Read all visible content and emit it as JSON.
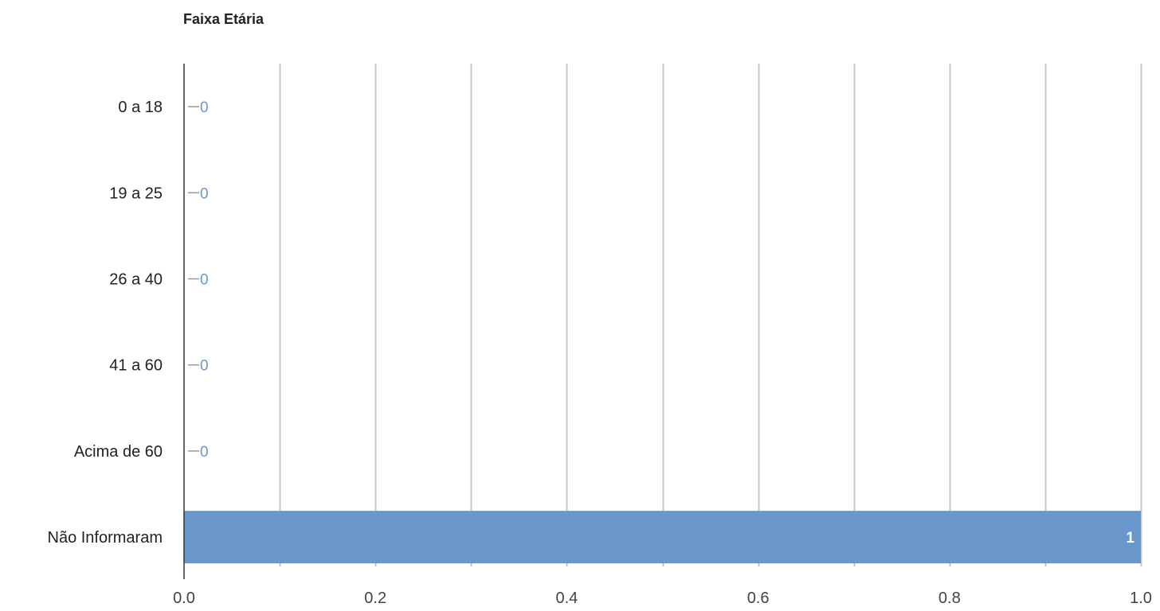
{
  "chart_data": {
    "type": "bar",
    "orientation": "horizontal",
    "title": "Faixa Etária",
    "categories": [
      "0 a 18",
      "19 a 25",
      "26 a 40",
      "41 a 60",
      "Acima de 60",
      "Não Informaram"
    ],
    "values": [
      0,
      0,
      0,
      0,
      0,
      1
    ],
    "data_labels": [
      "0",
      "0",
      "0",
      "0",
      "0",
      "1"
    ],
    "xlim": [
      0,
      1.0
    ],
    "x_ticks": [
      0.0,
      0.2,
      0.4,
      0.6,
      0.8,
      1.0
    ],
    "x_tick_labels": [
      "0.0",
      "0.2",
      "0.4",
      "0.6",
      "0.8",
      "1.0"
    ],
    "minor_grid_step": 0.1,
    "grid": true,
    "legend": "none",
    "bar_color": "#6a97cb"
  }
}
